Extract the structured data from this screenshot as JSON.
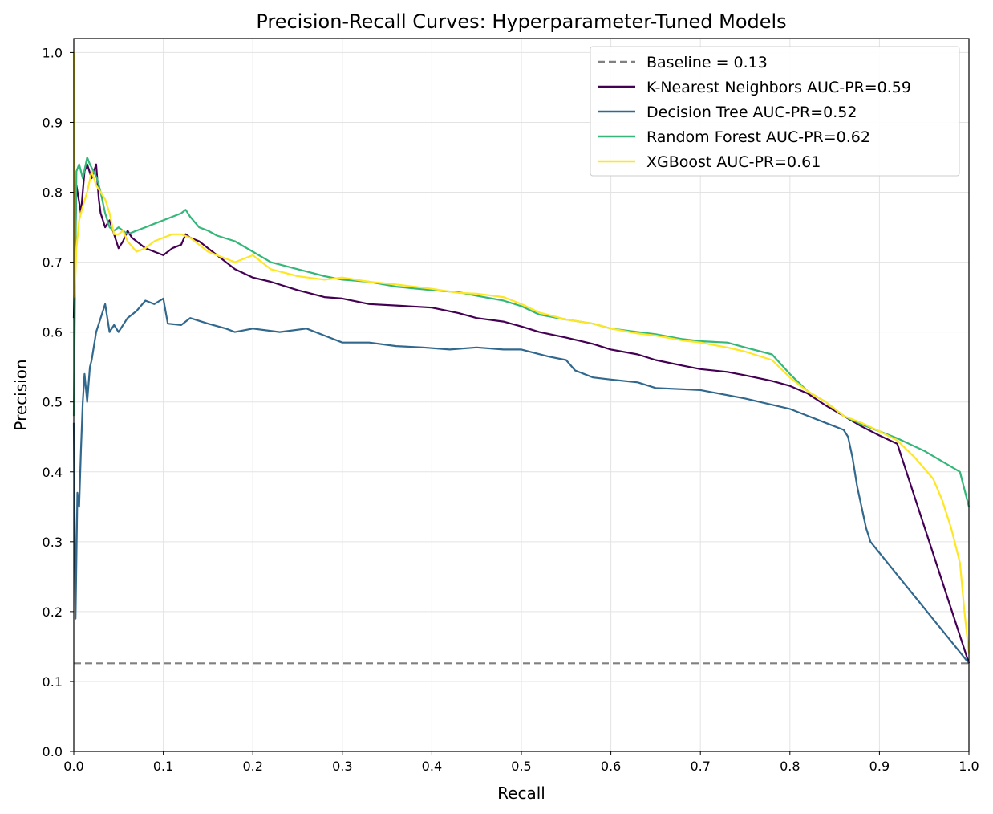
{
  "chart_data": {
    "type": "line",
    "title": "Precision-Recall Curves: Hyperparameter-Tuned Models",
    "xlabel": "Recall",
    "ylabel": "Precision",
    "xlim": [
      0,
      1
    ],
    "ylim": [
      0,
      1.02
    ],
    "xticks": [
      "0.0",
      "0.1",
      "0.2",
      "0.3",
      "0.4",
      "0.5",
      "0.6",
      "0.7",
      "0.8",
      "0.9",
      "1.0"
    ],
    "yticks": [
      "0.0",
      "0.1",
      "0.2",
      "0.3",
      "0.4",
      "0.5",
      "0.6",
      "0.7",
      "0.8",
      "0.9",
      "1.0"
    ],
    "grid": true,
    "legend_position": "top-right",
    "baseline": {
      "name": "Baseline = 0.13",
      "value": 0.126,
      "color": "#808080",
      "dashed": true
    },
    "series": [
      {
        "name": "K-Nearest Neighbors AUC-PR=0.59",
        "color": "#440154",
        "x": [
          0.0,
          0.003,
          0.008,
          0.012,
          0.015,
          0.02,
          0.025,
          0.028,
          0.03,
          0.035,
          0.04,
          0.045,
          0.05,
          0.055,
          0.06,
          0.065,
          0.07,
          0.08,
          0.09,
          0.1,
          0.11,
          0.12,
          0.125,
          0.13,
          0.14,
          0.15,
          0.16,
          0.18,
          0.2,
          0.22,
          0.25,
          0.28,
          0.3,
          0.33,
          0.36,
          0.4,
          0.43,
          0.45,
          0.48,
          0.5,
          0.52,
          0.55,
          0.58,
          0.6,
          0.63,
          0.65,
          0.68,
          0.7,
          0.73,
          0.75,
          0.78,
          0.8,
          0.82,
          0.84,
          0.86,
          0.88,
          0.9,
          0.92,
          1.0
        ],
        "y": [
          0.62,
          0.81,
          0.77,
          0.83,
          0.84,
          0.82,
          0.84,
          0.79,
          0.77,
          0.75,
          0.76,
          0.74,
          0.72,
          0.73,
          0.745,
          0.735,
          0.73,
          0.72,
          0.715,
          0.71,
          0.72,
          0.725,
          0.74,
          0.735,
          0.73,
          0.72,
          0.71,
          0.69,
          0.678,
          0.672,
          0.66,
          0.65,
          0.648,
          0.64,
          0.638,
          0.635,
          0.627,
          0.62,
          0.615,
          0.608,
          0.6,
          0.592,
          0.583,
          0.575,
          0.568,
          0.56,
          0.552,
          0.547,
          0.543,
          0.538,
          0.53,
          0.523,
          0.512,
          0.495,
          0.48,
          0.465,
          0.452,
          0.44,
          0.126
        ]
      },
      {
        "name": "Decision Tree AUC-PR=0.52",
        "color": "#31688e",
        "x": [
          0.0,
          0.002,
          0.004,
          0.006,
          0.008,
          0.01,
          0.012,
          0.015,
          0.018,
          0.02,
          0.025,
          0.03,
          0.035,
          0.04,
          0.045,
          0.05,
          0.06,
          0.07,
          0.08,
          0.09,
          0.1,
          0.105,
          0.12,
          0.13,
          0.15,
          0.17,
          0.18,
          0.2,
          0.23,
          0.26,
          0.28,
          0.3,
          0.33,
          0.36,
          0.39,
          0.42,
          0.45,
          0.48,
          0.5,
          0.53,
          0.55,
          0.56,
          0.58,
          0.6,
          0.63,
          0.65,
          0.7,
          0.75,
          0.8,
          0.82,
          0.84,
          0.86,
          0.865,
          0.87,
          0.875,
          0.88,
          0.885,
          0.89,
          1.0
        ],
        "y": [
          0.47,
          0.19,
          0.37,
          0.35,
          0.43,
          0.5,
          0.54,
          0.5,
          0.55,
          0.56,
          0.6,
          0.62,
          0.64,
          0.6,
          0.61,
          0.6,
          0.62,
          0.63,
          0.645,
          0.64,
          0.648,
          0.612,
          0.61,
          0.62,
          0.612,
          0.605,
          0.6,
          0.605,
          0.6,
          0.605,
          0.595,
          0.585,
          0.585,
          0.58,
          0.578,
          0.575,
          0.578,
          0.575,
          0.575,
          0.565,
          0.56,
          0.545,
          0.535,
          0.532,
          0.528,
          0.52,
          0.517,
          0.505,
          0.49,
          0.48,
          0.47,
          0.46,
          0.45,
          0.42,
          0.38,
          0.35,
          0.32,
          0.3,
          0.126
        ]
      },
      {
        "name": "Random Forest AUC-PR=0.62",
        "color": "#35b779",
        "x": [
          0.0,
          0.003,
          0.006,
          0.01,
          0.015,
          0.018,
          0.022,
          0.026,
          0.03,
          0.035,
          0.04,
          0.045,
          0.05,
          0.06,
          0.07,
          0.08,
          0.09,
          0.1,
          0.11,
          0.12,
          0.125,
          0.13,
          0.14,
          0.15,
          0.16,
          0.18,
          0.2,
          0.22,
          0.25,
          0.28,
          0.3,
          0.33,
          0.36,
          0.4,
          0.43,
          0.45,
          0.48,
          0.5,
          0.52,
          0.55,
          0.58,
          0.6,
          0.63,
          0.65,
          0.68,
          0.7,
          0.73,
          0.75,
          0.78,
          0.8,
          0.82,
          0.84,
          0.86,
          0.88,
          0.9,
          0.92,
          0.95,
          0.97,
          0.99,
          1.0
        ],
        "y": [
          0.48,
          0.83,
          0.84,
          0.82,
          0.85,
          0.84,
          0.83,
          0.82,
          0.8,
          0.77,
          0.75,
          0.745,
          0.75,
          0.74,
          0.745,
          0.75,
          0.755,
          0.76,
          0.765,
          0.77,
          0.775,
          0.765,
          0.75,
          0.745,
          0.738,
          0.73,
          0.715,
          0.7,
          0.69,
          0.68,
          0.675,
          0.672,
          0.665,
          0.66,
          0.657,
          0.652,
          0.645,
          0.637,
          0.625,
          0.618,
          0.612,
          0.605,
          0.6,
          0.597,
          0.59,
          0.587,
          0.585,
          0.578,
          0.568,
          0.54,
          0.515,
          0.5,
          0.48,
          0.468,
          0.458,
          0.448,
          0.43,
          0.415,
          0.4,
          0.35
        ]
      },
      {
        "name": "XGBoost AUC-PR=0.61",
        "color": "#fde725",
        "x": [
          0.0,
          0.001,
          0.003,
          0.006,
          0.01,
          0.015,
          0.02,
          0.025,
          0.03,
          0.035,
          0.04,
          0.045,
          0.05,
          0.055,
          0.06,
          0.07,
          0.08,
          0.09,
          0.1,
          0.11,
          0.12,
          0.13,
          0.14,
          0.15,
          0.16,
          0.18,
          0.2,
          0.22,
          0.25,
          0.28,
          0.3,
          0.33,
          0.36,
          0.4,
          0.43,
          0.45,
          0.48,
          0.5,
          0.52,
          0.55,
          0.58,
          0.6,
          0.63,
          0.65,
          0.68,
          0.7,
          0.73,
          0.75,
          0.78,
          0.8,
          0.82,
          0.84,
          0.86,
          0.88,
          0.9,
          0.92,
          0.94,
          0.96,
          0.97,
          0.98,
          0.99,
          0.995,
          1.0
        ],
        "y": [
          1.0,
          0.65,
          0.72,
          0.76,
          0.78,
          0.8,
          0.83,
          0.81,
          0.8,
          0.79,
          0.77,
          0.74,
          0.74,
          0.745,
          0.73,
          0.715,
          0.72,
          0.73,
          0.735,
          0.74,
          0.74,
          0.735,
          0.725,
          0.715,
          0.71,
          0.7,
          0.71,
          0.69,
          0.68,
          0.675,
          0.678,
          0.672,
          0.668,
          0.662,
          0.656,
          0.655,
          0.65,
          0.64,
          0.628,
          0.618,
          0.612,
          0.605,
          0.598,
          0.595,
          0.588,
          0.585,
          0.578,
          0.572,
          0.56,
          0.535,
          0.515,
          0.5,
          0.48,
          0.47,
          0.458,
          0.445,
          0.42,
          0.39,
          0.36,
          0.32,
          0.27,
          0.2,
          0.14
        ]
      }
    ]
  }
}
